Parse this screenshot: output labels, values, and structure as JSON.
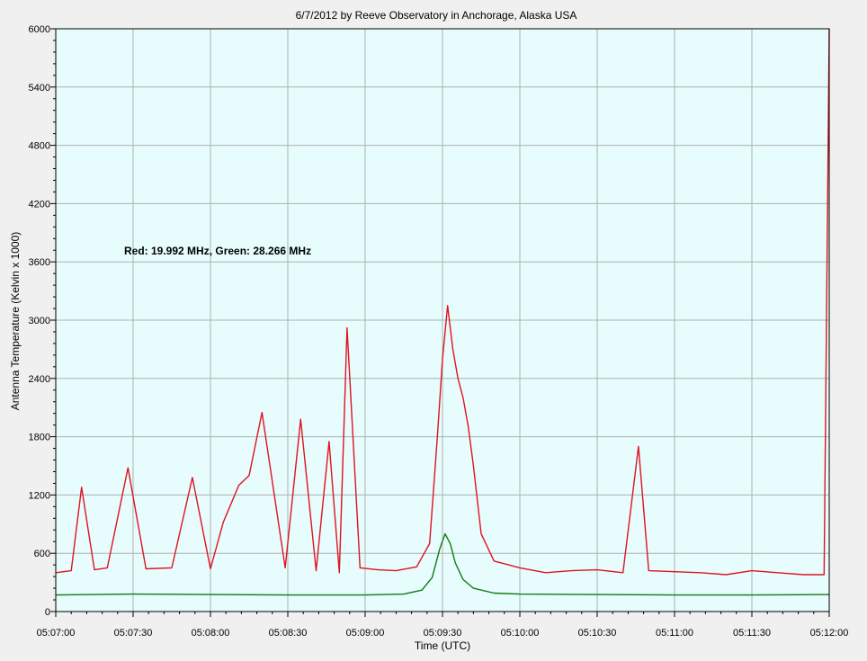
{
  "chart_data": {
    "type": "line",
    "title": "6/7/2012  by  Reeve Observatory  in  Anchorage, Alaska  USA",
    "xlabel": "Time (UTC)",
    "ylabel": "Antenna Temperature (Kelvin x 1000)",
    "annotation": "Red: 19.992 MHz, Green: 28.266 MHz",
    "xlim": [
      "05:07:00",
      "05:12:00"
    ],
    "ylim": [
      0,
      6000
    ],
    "x_ticks": [
      "05:07:00",
      "05:07:30",
      "05:08:00",
      "05:08:30",
      "05:09:00",
      "05:09:30",
      "05:10:00",
      "05:10:30",
      "05:11:00",
      "05:11:30",
      "05:12:00"
    ],
    "y_ticks": [
      0,
      600,
      1200,
      1800,
      2400,
      3000,
      3600,
      4200,
      4800,
      5400,
      6000
    ],
    "grid": true,
    "colors": {
      "plot_background": "#e6fcfd",
      "grid": "#b0b0b0",
      "red_series": "#e0121f",
      "green_series": "#127a12"
    },
    "series": [
      {
        "color_name": "red",
        "x": [
          "05:07:00",
          "05:07:06",
          "05:07:10",
          "05:07:15",
          "05:07:20",
          "05:07:28",
          "05:07:35",
          "05:07:45",
          "05:07:53",
          "05:08:00",
          "05:08:05",
          "05:08:11",
          "05:08:15",
          "05:08:20",
          "05:08:29",
          "05:08:35",
          "05:08:41",
          "05:08:46",
          "05:08:50",
          "05:08:53",
          "05:08:58",
          "05:09:05",
          "05:09:12",
          "05:09:20",
          "05:09:25",
          "05:09:28",
          "05:09:30",
          "05:09:32",
          "05:09:34",
          "05:09:36",
          "05:09:38",
          "05:09:40",
          "05:09:42",
          "05:09:45",
          "05:09:50",
          "05:10:00",
          "05:10:10",
          "05:10:20",
          "05:10:30",
          "05:10:40",
          "05:10:46",
          "05:10:50",
          "05:11:00",
          "05:11:10",
          "05:11:20",
          "05:11:30",
          "05:11:40",
          "05:11:50",
          "05:11:58",
          "05:12:00"
        ],
        "y": [
          400,
          420,
          1280,
          430,
          450,
          1480,
          440,
          450,
          1380,
          440,
          920,
          1300,
          1400,
          2050,
          450,
          1980,
          420,
          1750,
          400,
          2920,
          450,
          430,
          420,
          460,
          700,
          1800,
          2600,
          3150,
          2700,
          2400,
          2200,
          1900,
          1500,
          800,
          520,
          450,
          400,
          420,
          430,
          400,
          1700,
          420,
          410,
          400,
          380,
          420,
          400,
          380,
          380,
          6000
        ]
      },
      {
        "color_name": "green",
        "x": [
          "05:07:00",
          "05:07:30",
          "05:08:00",
          "05:08:30",
          "05:09:00",
          "05:09:15",
          "05:09:22",
          "05:09:26",
          "05:09:29",
          "05:09:31",
          "05:09:33",
          "05:09:35",
          "05:09:38",
          "05:09:42",
          "05:09:50",
          "05:10:00",
          "05:10:30",
          "05:11:00",
          "05:11:30",
          "05:12:00"
        ],
        "y": [
          170,
          180,
          175,
          170,
          170,
          180,
          220,
          350,
          650,
          800,
          700,
          500,
          330,
          240,
          190,
          180,
          175,
          170,
          170,
          175
        ]
      }
    ]
  }
}
